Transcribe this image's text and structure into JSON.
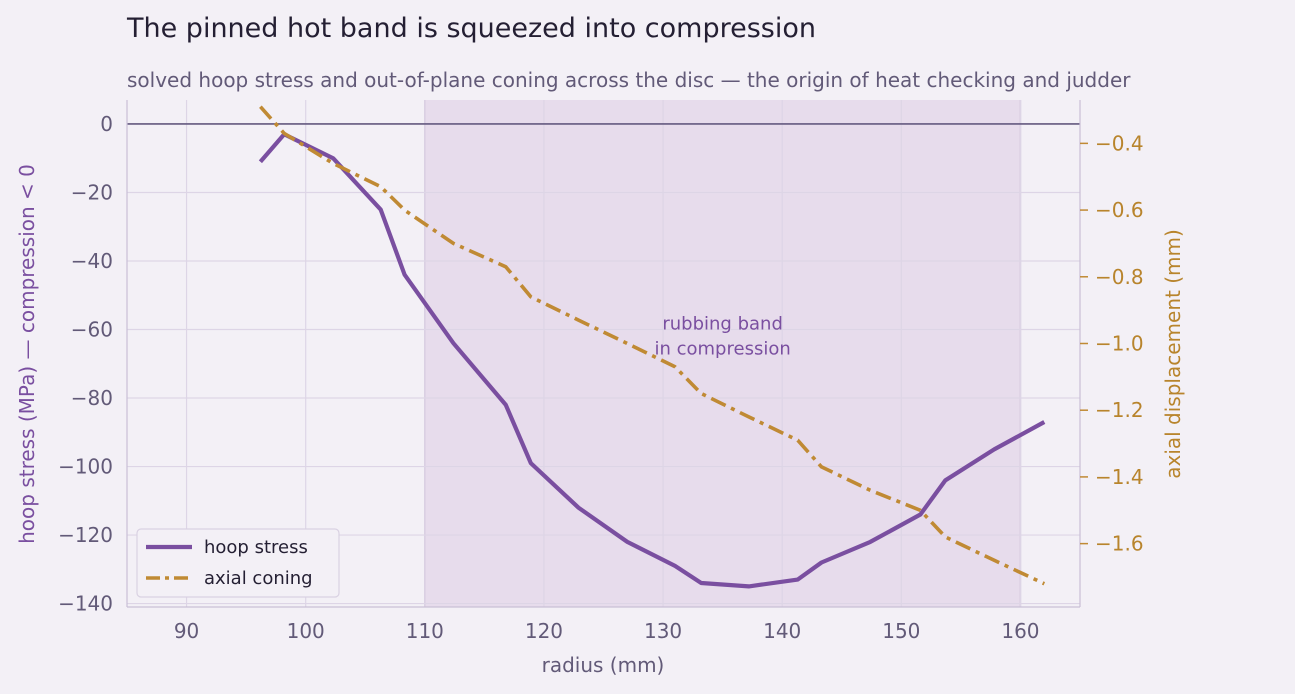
{
  "chart_data": {
    "type": "line",
    "title": "The pinned hot band is squeezed into compression",
    "subtitle": "solved hoop stress and out-of-plane coning across the disc — the origin of heat checking and judder",
    "xlabel": "radius (mm)",
    "ylabel": "hoop stress (MPa)  —  compression < 0",
    "y2label": "axial displacement (mm)",
    "xlim": [
      85,
      165
    ],
    "ylim": [
      -141,
      7
    ],
    "y2lim": [
      -1.79,
      -0.27
    ],
    "xticks": [
      "90",
      "100",
      "110",
      "120",
      "130",
      "140",
      "150",
      "160"
    ],
    "yticks": [
      "0",
      "−20",
      "−40",
      "−60",
      "−80",
      "−100",
      "−120",
      "−140"
    ],
    "y2ticks": [
      "−0.4",
      "−0.6",
      "−0.8",
      "−1.0",
      "−1.2",
      "−1.4",
      "−1.6"
    ],
    "grid": true,
    "legend_position": "lower-left",
    "band": {
      "x0": 110,
      "x1": 160,
      "label_line1": "rubbing band",
      "label_line2": "in compression",
      "label_x": 135,
      "label_y": -62
    },
    "zero_line": 0,
    "colors": {
      "hoop": "#7a4fa0",
      "coning": "#c08a34",
      "band": "#e7dcec",
      "background": "#f3f0f6"
    },
    "series": [
      {
        "name": "hoop stress",
        "axis": "left",
        "style": "solid",
        "x": [
          96.2,
          98.2,
          102.3,
          106.3,
          108.3,
          112.4,
          116.8,
          118.9,
          122.9,
          127.0,
          131.0,
          133.2,
          137.2,
          141.3,
          143.3,
          147.4,
          151.6,
          153.7,
          157.8,
          162.0
        ],
        "values": [
          -11,
          -3,
          -10,
          -25,
          -44,
          -64,
          -82,
          -99,
          -112,
          -122,
          -129,
          -134,
          -135,
          -133,
          -128,
          -122,
          -114,
          -104,
          -95,
          -87
        ]
      },
      {
        "name": "axial coning",
        "axis": "right",
        "style": "dashdot",
        "x": [
          96.2,
          98.2,
          102.3,
          106.3,
          108.3,
          112.4,
          116.8,
          118.9,
          122.9,
          127.0,
          131.0,
          133.2,
          137.2,
          141.3,
          143.3,
          147.4,
          151.6,
          153.7,
          157.8,
          162.0
        ],
        "values": [
          -0.29,
          -0.37,
          -0.46,
          -0.53,
          -0.6,
          -0.7,
          -0.77,
          -0.86,
          -0.93,
          -1.0,
          -1.07,
          -1.15,
          -1.22,
          -1.29,
          -1.37,
          -1.44,
          -1.5,
          -1.58,
          -1.65,
          -1.72
        ]
      }
    ]
  }
}
